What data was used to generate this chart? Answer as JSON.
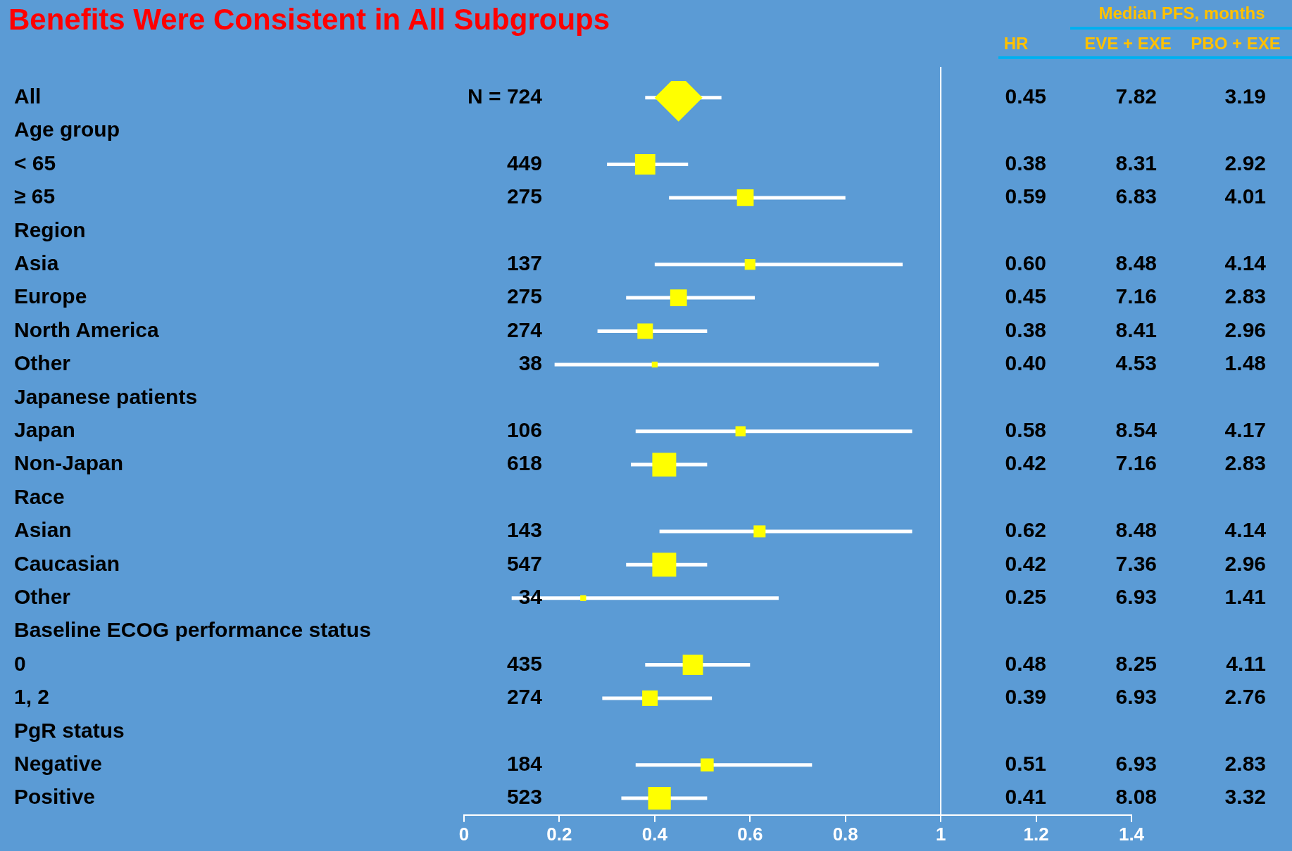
{
  "chart_data": {
    "type": "bubble",
    "orientation": "horizontal",
    "title": "Benefits Were Consistent in All Subgroups",
    "categories": [
      "All",
      "Age group",
      "< 65",
      "≥ 65",
      "Region",
      "Asia",
      "Europe",
      "North America",
      "Other",
      "Japanese patients",
      "Japan",
      "Non-Japan",
      "Race",
      "Asian",
      "Caucasian",
      "Other",
      "Baseline ECOG performance status",
      "0",
      "1, 2",
      "PgR status",
      "Negative",
      "Positive"
    ],
    "series": [
      {
        "type": "scatter",
        "marker": "diamond",
        "color": "#ffff00",
        "values": [
          0.45,
          null,
          null,
          null,
          null,
          null,
          null,
          null,
          null,
          null,
          null,
          null,
          null,
          null,
          null,
          null,
          null,
          null,
          null,
          null,
          null,
          null
        ],
        "errors": [
          [
            0.38,
            0.54
          ],
          null,
          null,
          null,
          null,
          null,
          null,
          null,
          null,
          null,
          null,
          null,
          null,
          null,
          null,
          null,
          null,
          null,
          null,
          null,
          null,
          null
        ]
      },
      {
        "marker": "square",
        "color": "#ffff00",
        "values": [
          null,
          null,
          0.38,
          0.59,
          null,
          0.6,
          0.45,
          0.38,
          0.4,
          null,
          0.58,
          0.42,
          null,
          0.62,
          0.42,
          0.25,
          null,
          0.48,
          0.39,
          null,
          0.51,
          0.41
        ],
        "sizes": [
          null,
          null,
          0.72,
          0.49,
          null,
          0.2,
          0.49,
          0.42,
          0.06,
          null,
          0.18,
          1,
          null,
          0.25,
          1,
          0.06,
          null,
          0.72,
          0.42,
          null,
          0.3,
          0.9
        ],
        "errors": [
          null,
          null,
          [
            0.3,
            0.47
          ],
          [
            0.43,
            0.8
          ],
          null,
          [
            0.4,
            0.92
          ],
          [
            0.34,
            0.61
          ],
          [
            0.28,
            0.51
          ],
          [
            0.19,
            0.87
          ],
          null,
          [
            0.36,
            0.94
          ],
          [
            0.35,
            0.51
          ],
          null,
          [
            0.41,
            0.94
          ],
          [
            0.34,
            0.51
          ],
          [
            0.1,
            0.66
          ],
          null,
          [
            0.38,
            0.6
          ],
          [
            0.29,
            0.52
          ],
          null,
          [
            0.36,
            0.73
          ],
          [
            0.33,
            0.51
          ]
        ]
      }
    ],
    "xlim": [
      0,
      1.4
    ],
    "xticks": [
      0,
      0.2,
      0.4,
      0.6,
      0.8,
      1,
      1.2,
      1.4
    ],
    "ref_lines": [
      {
        "axis": "x",
        "value": 1,
        "color": "#ffffff"
      }
    ],
    "annotations": [
      "Median PFS, months",
      "HR",
      "EVE + EXE",
      "PBO + EXE",
      "N = 724",
      "0.45",
      "7.82",
      "3.19",
      "449",
      "0.38",
      "8.31",
      "2.92",
      "275",
      "0.59",
      "6.83",
      "4.01",
      "137",
      "0.60",
      "8.48",
      "4.14",
      "275",
      "0.45",
      "7.16",
      "2.83",
      "274",
      "0.38",
      "8.41",
      "2.96",
      "38",
      "0.40",
      "4.53",
      "1.48",
      "106",
      "0.58",
      "8.54",
      "4.17",
      "618",
      "0.42",
      "7.16",
      "2.83",
      "143",
      "0.62",
      "8.48",
      "4.14",
      "547",
      "0.42",
      "7.36",
      "2.96",
      "34",
      "0.25",
      "6.93",
      "1.41",
      "435",
      "0.48",
      "8.25",
      "4.11",
      "274",
      "0.39",
      "6.93",
      "2.76",
      "184",
      "0.51",
      "6.93",
      "2.83",
      "523",
      "0.41",
      "8.08",
      "3.32"
    ]
  }
}
